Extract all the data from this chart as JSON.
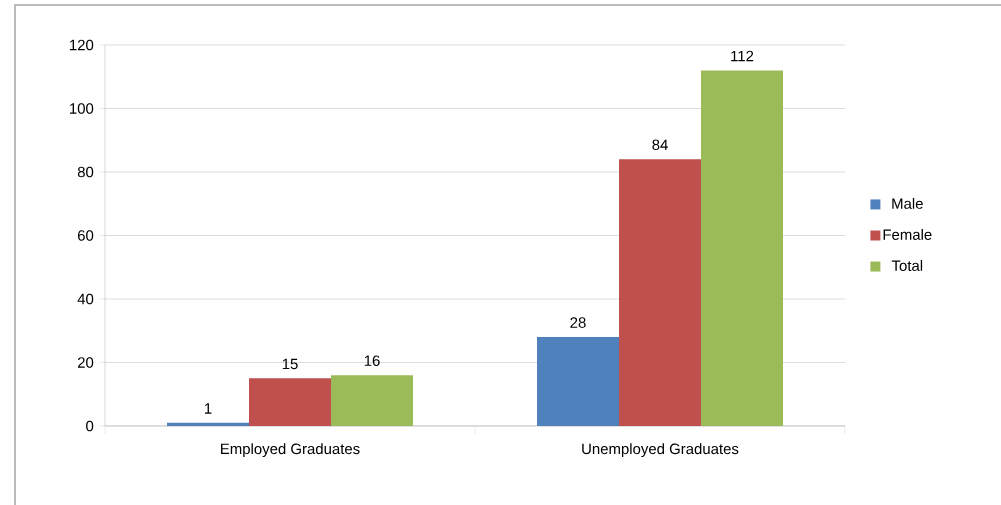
{
  "chart_data": {
    "type": "bar",
    "categories": [
      "Employed Graduates",
      "Unemployed Graduates"
    ],
    "series": [
      {
        "name": "Male",
        "color": "#4f81bd",
        "values": [
          1,
          28
        ]
      },
      {
        "name": "Female",
        "color": "#c0504d",
        "values": [
          15,
          84
        ]
      },
      {
        "name": "Total",
        "color": "#9bbb59",
        "values": [
          16,
          112
        ]
      }
    ],
    "ylim": [
      0,
      120
    ],
    "yticks": [
      0,
      20,
      40,
      60,
      80,
      100,
      120
    ],
    "grid": "y",
    "legend": "right",
    "data_labels": true
  }
}
